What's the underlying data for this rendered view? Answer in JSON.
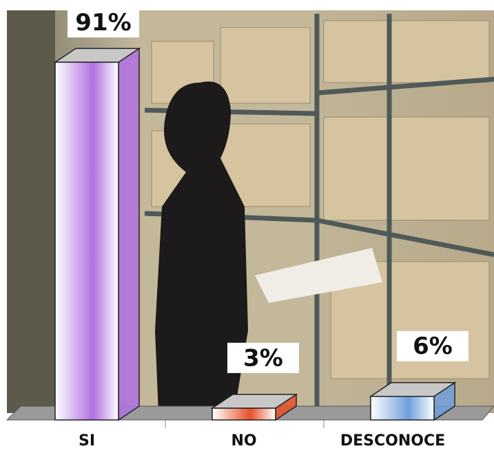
{
  "chart_data": {
    "type": "bar3d",
    "categories": [
      "SI",
      "NO",
      "DESCONOCE"
    ],
    "values": [
      91,
      3,
      6
    ],
    "value_labels": [
      "91%",
      "3%",
      "6%"
    ],
    "colors": [
      "#b070e0",
      "#e8502a",
      "#6f9fdc"
    ]
  }
}
